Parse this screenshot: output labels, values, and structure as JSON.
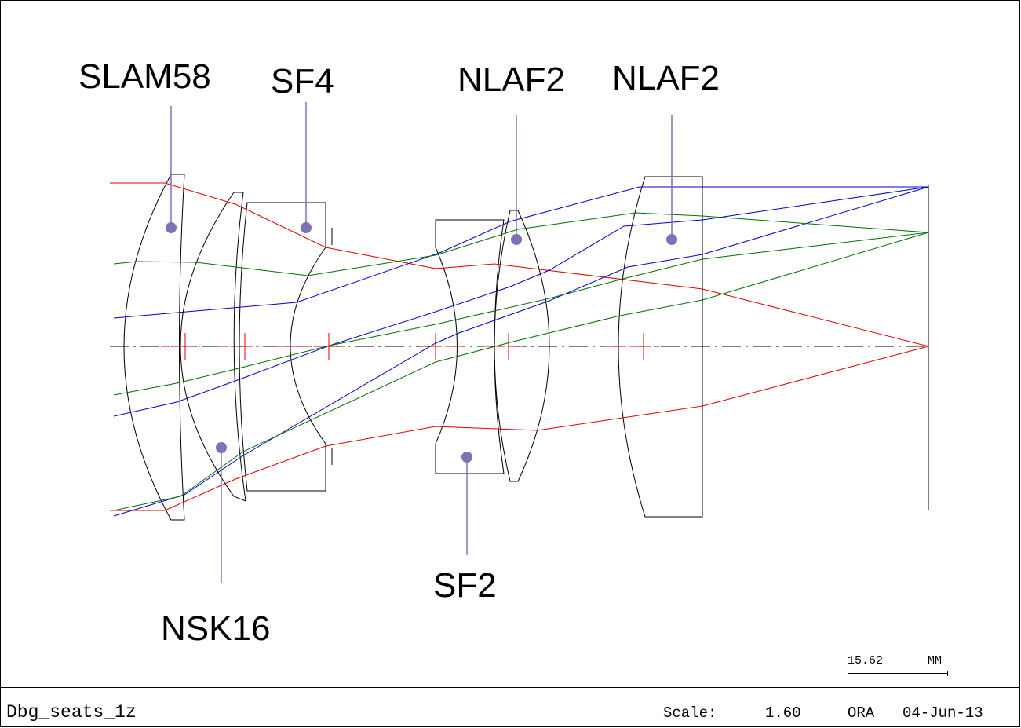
{
  "labels": [
    {
      "text": "SLAM58"
    },
    {
      "text": "SF4"
    },
    {
      "text": "NLAF2"
    },
    {
      "text": "NLAF2"
    },
    {
      "text": "NSK16"
    },
    {
      "text": "SF2"
    }
  ],
  "scale_bar": {
    "length": "15.62",
    "unit": "MM"
  },
  "footer": {
    "name": "Dbg_seats_1z",
    "scale_label": "Scale:",
    "scale_value": "1.60",
    "program": "ORA",
    "date": "04-Jun-13"
  }
}
